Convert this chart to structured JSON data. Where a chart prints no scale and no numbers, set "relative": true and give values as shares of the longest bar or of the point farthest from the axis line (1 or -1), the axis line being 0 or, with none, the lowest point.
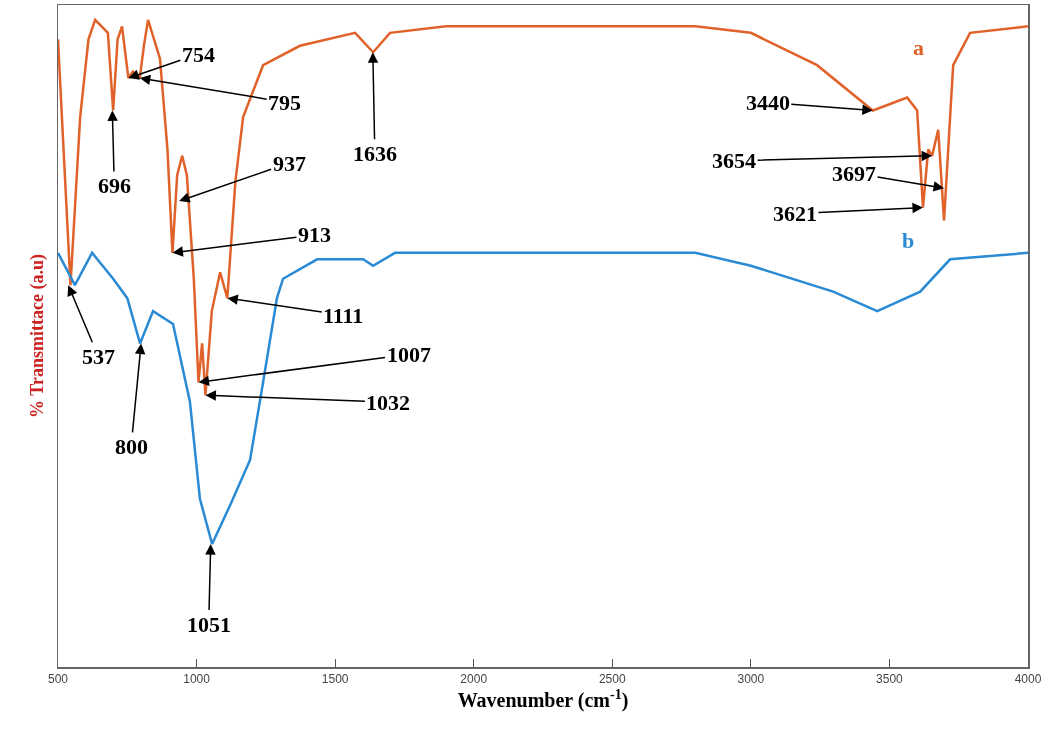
{
  "chart_data": {
    "type": "line",
    "relative": true,
    "xlabel": "Wavenumber (cm$^{-1}$)",
    "ylabel": "% Transmittace (a.u)",
    "xlim": [
      500,
      4000
    ],
    "xticks": [
      500,
      1000,
      1500,
      2000,
      2500,
      3000,
      3500,
      4000
    ],
    "grid": false,
    "legend": false,
    "marker": "none",
    "line_style": "solid",
    "series": [
      {
        "name": "a",
        "color": "#e0622a",
        "x": [
          500,
          520,
          545,
          580,
          610,
          634,
          680,
          699,
          715,
          731,
          754,
          770,
          795,
          810,
          825,
          868,
          895,
          913,
          930,
          948,
          965,
          990,
          1007,
          1020,
          1032,
          1055,
          1085,
          1111,
          1140,
          1168,
          1240,
          1373,
          1572,
          1637,
          1698,
          1900,
          2500,
          2800,
          3000,
          3239,
          3440,
          3564,
          3600,
          3621,
          3640,
          3654,
          3676,
          3697,
          3730,
          3791,
          4000
        ],
        "values": [
          0.97,
          0.8,
          0.59,
          0.85,
          0.97,
          1.0,
          0.98,
          0.86,
          0.97,
          0.99,
          0.91,
          0.92,
          0.91,
          0.96,
          1.0,
          0.94,
          0.8,
          0.64,
          0.76,
          0.79,
          0.76,
          0.6,
          0.44,
          0.5,
          0.42,
          0.55,
          0.61,
          0.57,
          0.75,
          0.85,
          0.93,
          0.96,
          0.98,
          0.95,
          0.98,
          0.99,
          0.99,
          0.99,
          0.98,
          0.93,
          0.86,
          0.88,
          0.86,
          0.71,
          0.8,
          0.79,
          0.83,
          0.69,
          0.93,
          0.98,
          0.99
        ]
      },
      {
        "name": "b",
        "color": "#2a8ad4",
        "x": [
          500,
          561,
          623,
          699,
          750,
          796,
          843,
          915,
          976,
          1012,
          1056,
          1121,
          1193,
          1240,
          1290,
          1312,
          1435,
          1601,
          1637,
          1716,
          2800,
          3000,
          3297,
          3456,
          3611,
          3719,
          4000
        ],
        "values": [
          0.64,
          0.59,
          0.64,
          0.6,
          0.57,
          0.5,
          0.55,
          0.53,
          0.41,
          0.26,
          0.19,
          0.25,
          0.32,
          0.44,
          0.57,
          0.6,
          0.63,
          0.63,
          0.62,
          0.64,
          0.64,
          0.62,
          0.58,
          0.55,
          0.58,
          0.63,
          0.64
        ]
      }
    ],
    "annotations": [
      {
        "text": "754",
        "x": 754,
        "y": 0.91
      },
      {
        "text": "795",
        "x": 795,
        "y": 0.91
      },
      {
        "text": "696",
        "x": 696,
        "y": 0.86
      },
      {
        "text": "937",
        "x": 937,
        "y": 0.72
      },
      {
        "text": "913",
        "x": 913,
        "y": 0.64
      },
      {
        "text": "1111",
        "x": 1111,
        "y": 0.57
      },
      {
        "text": "1007",
        "x": 1007,
        "y": 0.44
      },
      {
        "text": "1032",
        "x": 1032,
        "y": 0.42
      },
      {
        "text": "1636",
        "x": 1636,
        "y": 0.95
      },
      {
        "text": "537",
        "x": 537,
        "y": 0.59
      },
      {
        "text": "800",
        "x": 800,
        "y": 0.5
      },
      {
        "text": "1051",
        "x": 1051,
        "y": 0.19
      },
      {
        "text": "3440",
        "x": 3440,
        "y": 0.86
      },
      {
        "text": "3654",
        "x": 3654,
        "y": 0.79
      },
      {
        "text": "3697",
        "x": 3697,
        "y": 0.74
      },
      {
        "text": "3621",
        "x": 3621,
        "y": 0.71
      }
    ]
  }
}
